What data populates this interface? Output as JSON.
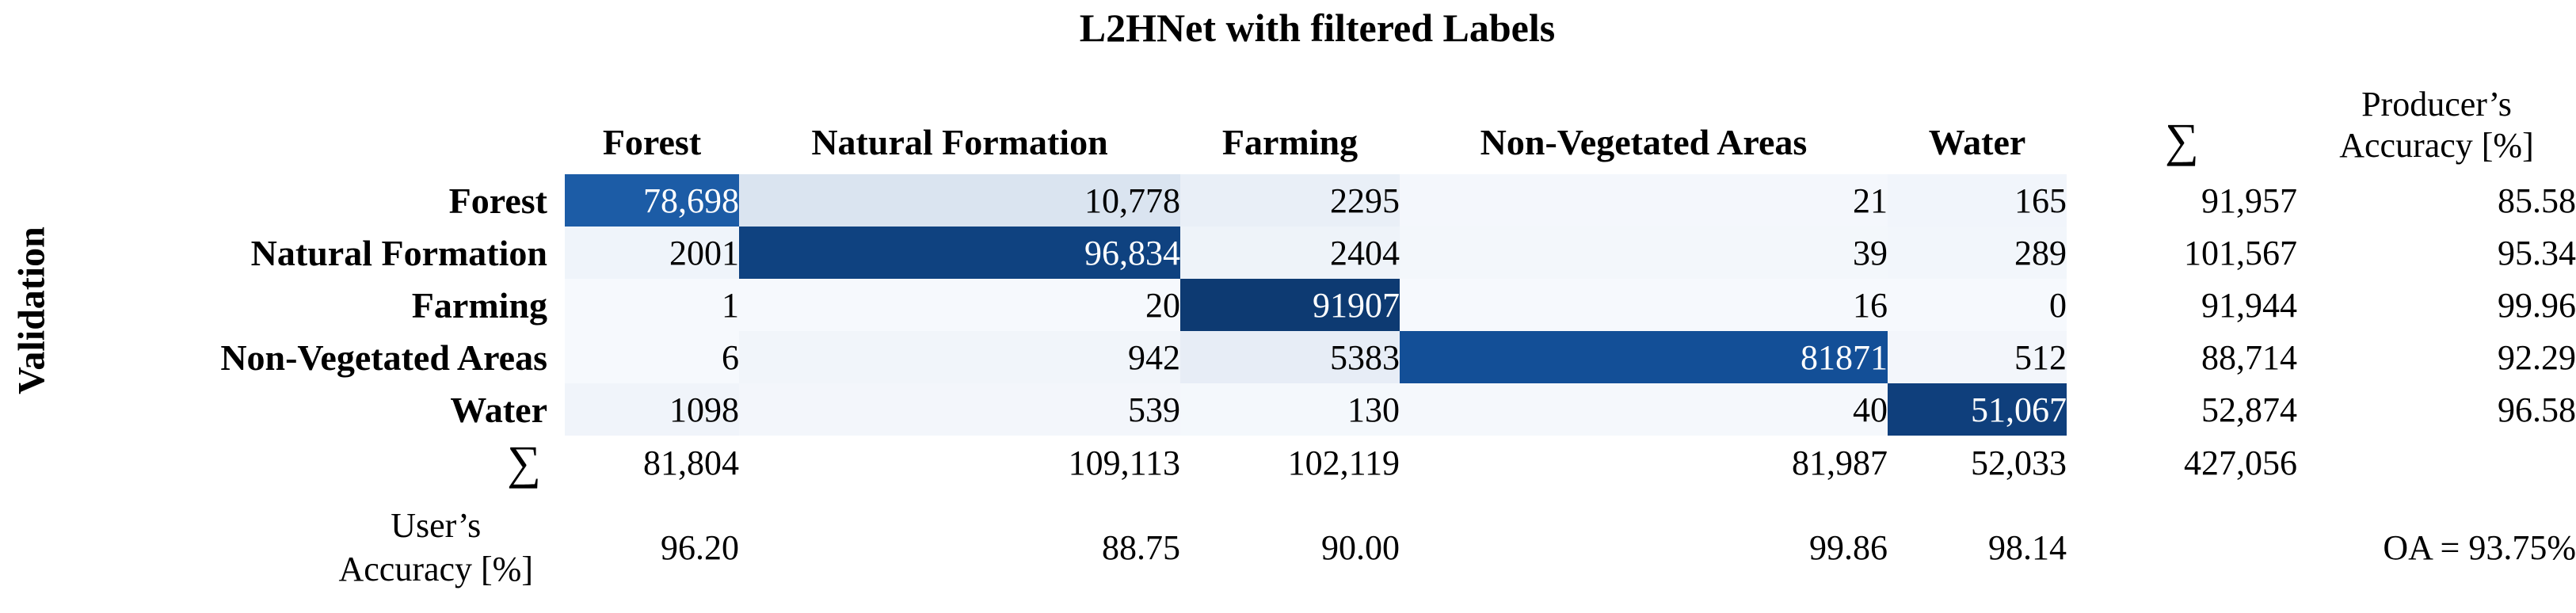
{
  "title": "L2HNet with filtered Labels",
  "axis_label_left": "Validation",
  "columns": [
    "Forest",
    "Natural Formation",
    "Farming",
    "Non-Vegetated Areas",
    "Water"
  ],
  "sum_symbol": "∑",
  "producer_header": {
    "line1": "Producer’s",
    "line2": "Accuracy [%]"
  },
  "user_header": {
    "line1": "User’s",
    "line2": "Accuracy [%]"
  },
  "rows": [
    {
      "label": "Forest",
      "values": [
        "78,698",
        "10,778",
        "2295",
        "21",
        "165"
      ],
      "sum": "91,957",
      "producer": "85.58"
    },
    {
      "label": "Natural Formation",
      "values": [
        "2001",
        "96,834",
        "2404",
        "39",
        "289"
      ],
      "sum": "101,567",
      "producer": "95.34"
    },
    {
      "label": "Farming",
      "values": [
        "1",
        "20",
        "91907",
        "16",
        "0"
      ],
      "sum": "91,944",
      "producer": "99.96"
    },
    {
      "label": "Non-Vegetated Areas",
      "values": [
        "6",
        "942",
        "5383",
        "81871",
        "512"
      ],
      "sum": "88,714",
      "producer": "92.29"
    },
    {
      "label": "Water",
      "values": [
        "1098",
        "539",
        "130",
        "40",
        "51,067"
      ],
      "sum": "52,874",
      "producer": "96.58"
    }
  ],
  "col_sums": [
    "81,804",
    "109,113",
    "102,119",
    "81,987",
    "52,033"
  ],
  "total_sum": "427,056",
  "user_accuracy": [
    "96.20",
    "88.75",
    "90.00",
    "99.86",
    "98.14"
  ],
  "overall_accuracy": "OA = 93.75%",
  "cell_colors": [
    [
      "#1c5ca6",
      "#dae4f0",
      "#e9eff7",
      "#f4f7fc",
      "#f1f5fb"
    ],
    [
      "#eff4fa",
      "#0f4280",
      "#eef3f9",
      "#f3f7fb",
      "#f2f6fb"
    ],
    [
      "#f6f9fd",
      "#f6f9fd",
      "#0d3a72",
      "#f6f9fd",
      "#f6f9fd"
    ],
    [
      "#f6f9fd",
      "#f1f5fa",
      "#e7edf6",
      "#134f97",
      "#f3f6fb"
    ],
    [
      "#f0f4fa",
      "#f3f6fb",
      "#f4f8fc",
      "#f5f8fc",
      "#0f3f7c"
    ]
  ],
  "chart_data": {
    "type": "heatmap",
    "title": "L2HNet with filtered Labels",
    "row_axis_label": "Validation",
    "categories": [
      "Forest",
      "Natural Formation",
      "Farming",
      "Non-Vegetated Areas",
      "Water"
    ],
    "values": [
      [
        78698,
        10778,
        2295,
        21,
        165
      ],
      [
        2001,
        96834,
        2404,
        39,
        289
      ],
      [
        1,
        20,
        91907,
        16,
        0
      ],
      [
        6,
        942,
        5383,
        81871,
        512
      ],
      [
        1098,
        539,
        130,
        40,
        51067
      ]
    ],
    "row_sums": [
      91957,
      101567,
      91944,
      88714,
      52874
    ],
    "col_sums": [
      81804,
      109113,
      102119,
      81987,
      52033
    ],
    "total": 427056,
    "producers_accuracy_pct": [
      85.58,
      95.34,
      99.96,
      92.29,
      96.58
    ],
    "users_accuracy_pct": [
      96.2,
      88.75,
      90.0,
      99.86,
      98.14
    ],
    "overall_accuracy_pct": 93.75,
    "colormap": "Blues",
    "layout": "confusion matrix with sum row/column, producer accuracy column, user accuracy row"
  }
}
